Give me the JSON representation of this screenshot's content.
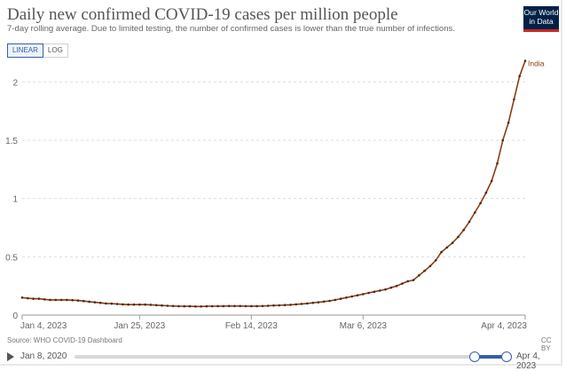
{
  "header": {
    "title": "Daily new confirmed COVID-19 cases per million people",
    "subtitle": "7-day rolling average. Due to limited testing, the number of confirmed cases is lower than the true number of infections.",
    "logo_line1": "Our World",
    "logo_line2": "in Data"
  },
  "controls": {
    "linear_label": "LINEAR",
    "log_label": "LOG",
    "selected": "LINEAR"
  },
  "footer": {
    "source": "Source: WHO COVID-19 Dashboard",
    "license": "CC BY"
  },
  "timeline": {
    "start_label": "Jan 8, 2020",
    "end_label": "Apr 4, 2023"
  },
  "colors": {
    "line": "#8c3b12",
    "marker": "#4a2a1a",
    "grid": "#dddddd",
    "accent": "#3360a9"
  },
  "chart_data": {
    "type": "line",
    "title": "Daily new confirmed COVID-19 cases per million people",
    "subtitle": "7-day rolling average. Due to limited testing, the number of confirmed cases is lower than the true number of infections.",
    "xlabel": "",
    "ylabel": "",
    "x_range": [
      "2023-01-04",
      "2023-04-04"
    ],
    "ylim": [
      0,
      2.2
    ],
    "y_ticks": [
      0,
      0.5,
      1,
      1.5,
      2
    ],
    "y_tick_labels": [
      "0",
      "0.5",
      "1",
      "1.5",
      "2"
    ],
    "x_ticks": [
      "2023-01-04",
      "2023-01-25",
      "2023-02-14",
      "2023-03-06",
      "2023-04-04"
    ],
    "x_tick_labels": [
      "Jan 4, 2023",
      "Jan 25, 2023",
      "Feb 14, 2023",
      "Mar 6, 2023",
      "Apr 4, 2023"
    ],
    "grid": "horizontal",
    "legend": "end-label",
    "series": [
      {
        "name": "India",
        "points": [
          [
            "2023-01-04",
            0.15
          ],
          [
            "2023-01-05",
            0.145
          ],
          [
            "2023-01-06",
            0.14
          ],
          [
            "2023-01-07",
            0.14
          ],
          [
            "2023-01-08",
            0.135
          ],
          [
            "2023-01-09",
            0.13
          ],
          [
            "2023-01-10",
            0.13
          ],
          [
            "2023-01-11",
            0.13
          ],
          [
            "2023-01-12",
            0.13
          ],
          [
            "2023-01-13",
            0.128
          ],
          [
            "2023-01-14",
            0.125
          ],
          [
            "2023-01-15",
            0.12
          ],
          [
            "2023-01-16",
            0.115
          ],
          [
            "2023-01-17",
            0.11
          ],
          [
            "2023-01-18",
            0.105
          ],
          [
            "2023-01-19",
            0.1
          ],
          [
            "2023-01-20",
            0.098
          ],
          [
            "2023-01-21",
            0.095
          ],
          [
            "2023-01-22",
            0.092
          ],
          [
            "2023-01-23",
            0.09
          ],
          [
            "2023-01-24",
            0.09
          ],
          [
            "2023-01-25",
            0.09
          ],
          [
            "2023-01-26",
            0.09
          ],
          [
            "2023-01-27",
            0.088
          ],
          [
            "2023-01-28",
            0.085
          ],
          [
            "2023-01-29",
            0.082
          ],
          [
            "2023-01-30",
            0.08
          ],
          [
            "2023-01-31",
            0.078
          ],
          [
            "2023-02-01",
            0.076
          ],
          [
            "2023-02-02",
            0.075
          ],
          [
            "2023-02-03",
            0.075
          ],
          [
            "2023-02-04",
            0.074
          ],
          [
            "2023-02-05",
            0.074
          ],
          [
            "2023-02-06",
            0.075
          ],
          [
            "2023-02-07",
            0.076
          ],
          [
            "2023-02-08",
            0.077
          ],
          [
            "2023-02-09",
            0.077
          ],
          [
            "2023-02-10",
            0.078
          ],
          [
            "2023-02-11",
            0.078
          ],
          [
            "2023-02-12",
            0.078
          ],
          [
            "2023-02-13",
            0.077
          ],
          [
            "2023-02-14",
            0.077
          ],
          [
            "2023-02-15",
            0.077
          ],
          [
            "2023-02-16",
            0.078
          ],
          [
            "2023-02-17",
            0.08
          ],
          [
            "2023-02-18",
            0.082
          ],
          [
            "2023-02-19",
            0.084
          ],
          [
            "2023-02-20",
            0.086
          ],
          [
            "2023-02-21",
            0.088
          ],
          [
            "2023-02-22",
            0.092
          ],
          [
            "2023-02-23",
            0.096
          ],
          [
            "2023-02-24",
            0.1
          ],
          [
            "2023-02-25",
            0.105
          ],
          [
            "2023-02-26",
            0.11
          ],
          [
            "2023-02-27",
            0.116
          ],
          [
            "2023-02-28",
            0.122
          ],
          [
            "2023-03-01",
            0.13
          ],
          [
            "2023-03-02",
            0.14
          ],
          [
            "2023-03-03",
            0.15
          ],
          [
            "2023-03-04",
            0.16
          ],
          [
            "2023-03-05",
            0.17
          ],
          [
            "2023-03-06",
            0.18
          ],
          [
            "2023-03-07",
            0.19
          ],
          [
            "2023-03-08",
            0.2
          ],
          [
            "2023-03-09",
            0.21
          ],
          [
            "2023-03-10",
            0.22
          ],
          [
            "2023-03-11",
            0.235
          ],
          [
            "2023-03-12",
            0.25
          ],
          [
            "2023-03-13",
            0.27
          ],
          [
            "2023-03-14",
            0.29
          ],
          [
            "2023-03-15",
            0.3
          ],
          [
            "2023-03-16",
            0.34
          ],
          [
            "2023-03-17",
            0.38
          ],
          [
            "2023-03-18",
            0.42
          ],
          [
            "2023-03-19",
            0.47
          ],
          [
            "2023-03-20",
            0.54
          ],
          [
            "2023-03-21",
            0.58
          ],
          [
            "2023-03-22",
            0.62
          ],
          [
            "2023-03-23",
            0.67
          ],
          [
            "2023-03-24",
            0.73
          ],
          [
            "2023-03-25",
            0.8
          ],
          [
            "2023-03-26",
            0.88
          ],
          [
            "2023-03-27",
            0.96
          ],
          [
            "2023-03-28",
            1.05
          ],
          [
            "2023-03-29",
            1.15
          ],
          [
            "2023-03-30",
            1.3
          ],
          [
            "2023-03-31",
            1.5
          ],
          [
            "2023-04-01",
            1.65
          ],
          [
            "2023-04-02",
            1.85
          ],
          [
            "2023-04-03",
            2.05
          ],
          [
            "2023-04-04",
            2.18
          ]
        ]
      }
    ]
  }
}
